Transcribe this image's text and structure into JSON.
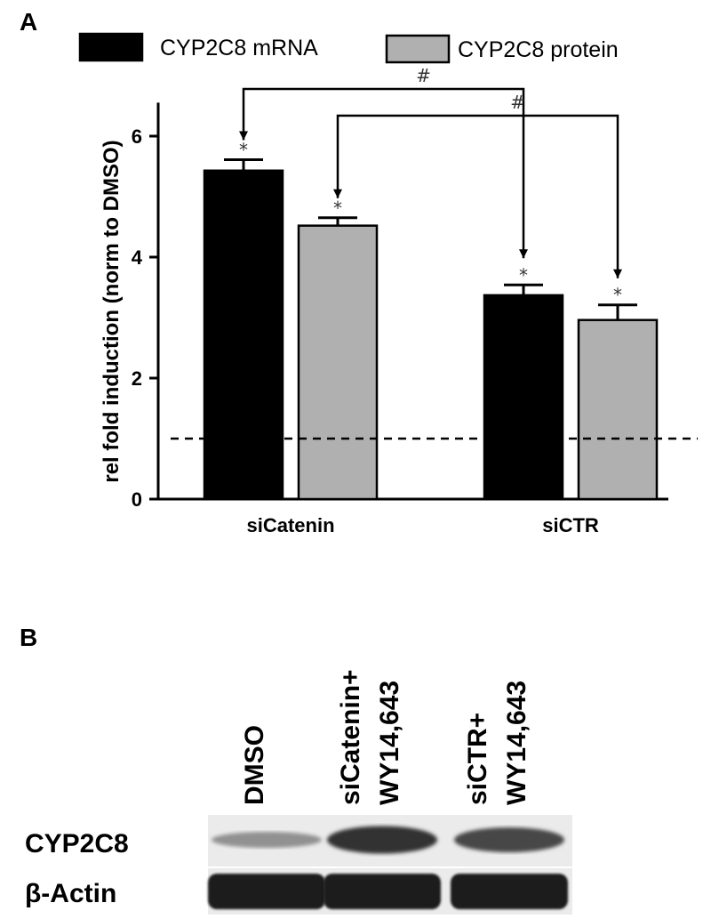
{
  "panel_a": {
    "label": "A"
  },
  "panel_b": {
    "label": "B"
  },
  "chart_data": {
    "type": "bar",
    "title": "",
    "xlabel": "",
    "ylabel": "rel fold induction (norm to DMSO)",
    "categories": [
      "siCatenin",
      "siCTR"
    ],
    "series": [
      {
        "name": "CYP2C8 mRNA",
        "color": "#000000",
        "values": [
          5.43,
          3.37
        ],
        "errors": [
          0.18,
          0.17
        ]
      },
      {
        "name": "CYP2C8 protein",
        "color": "#b0b0b0",
        "values": [
          4.52,
          2.96
        ],
        "errors": [
          0.13,
          0.25
        ]
      }
    ],
    "ylim": [
      0,
      6.7
    ],
    "yticks": [
      "0",
      "2",
      "4",
      "6"
    ],
    "ytick_values": [
      0,
      2,
      4,
      6
    ],
    "reference_line": {
      "value": 1.0,
      "style": "dashed"
    },
    "significance": {
      "star": "*",
      "hash": "#",
      "brackets": [
        {
          "from": [
            "siCatenin",
            "CYP2C8 mRNA"
          ],
          "to": [
            "siCTR",
            "CYP2C8 mRNA"
          ]
        },
        {
          "from": [
            "siCatenin",
            "CYP2C8 protein"
          ],
          "to": [
            "siCTR",
            "CYP2C8 protein"
          ]
        }
      ]
    },
    "legend": "top",
    "grid": false
  },
  "western_blot": {
    "lanes": [
      "DMSO",
      "siCatenin+\nWY14,643",
      "siCTR+\nWY14,643"
    ],
    "lane_label_lines": [
      [
        "DMSO"
      ],
      [
        "siCatenin+",
        "WY14,643"
      ],
      [
        "siCTR+",
        "WY14,643"
      ]
    ],
    "proteins": [
      "CYP2C8",
      "β-Actin"
    ],
    "band_intensity": {
      "CYP2C8": [
        0.3,
        0.95,
        0.8
      ],
      "β-Actin": [
        1.0,
        1.0,
        1.0
      ]
    }
  }
}
